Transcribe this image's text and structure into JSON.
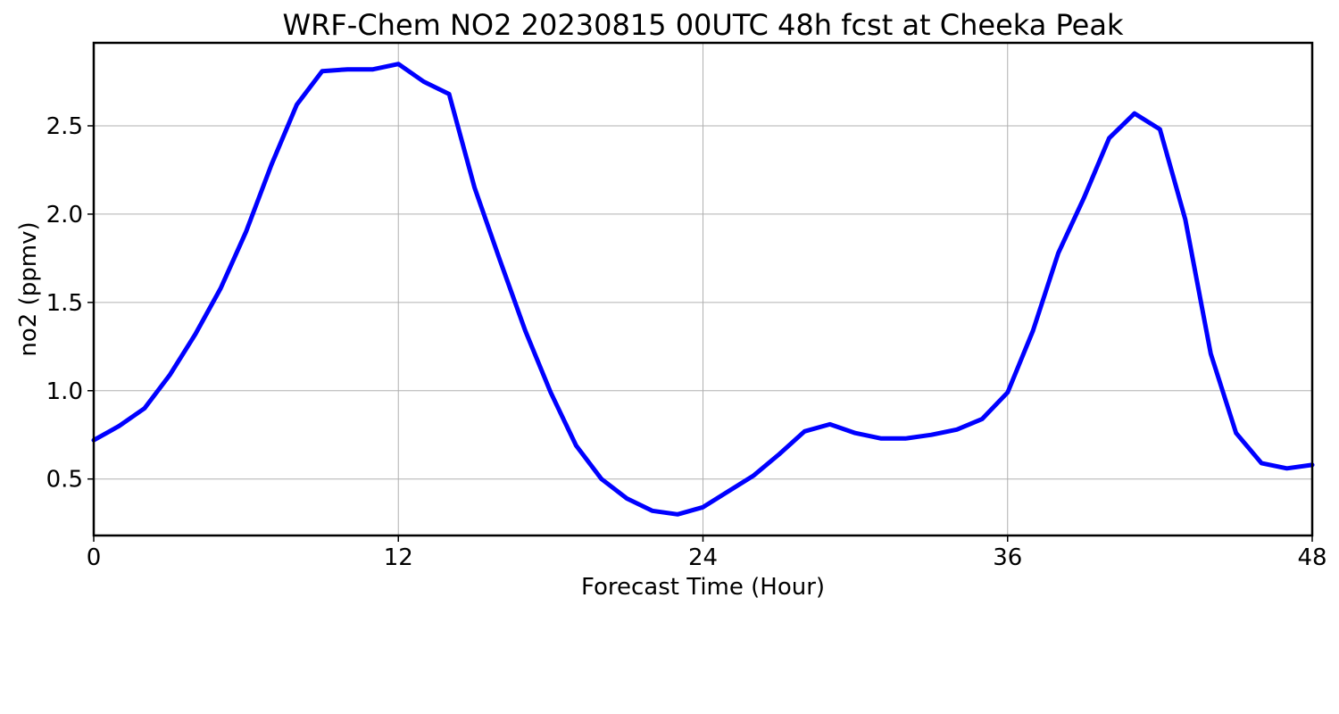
{
  "chart_data": {
    "type": "line",
    "title": "WRF-Chem NO2  20230815 00UTC 48h fcst at Cheeka Peak",
    "xlabel": "Forecast Time (Hour)",
    "ylabel": "no2  (ppmv)",
    "xlim": [
      0,
      48
    ],
    "ylim": [
      0.18,
      2.97
    ],
    "xticks": [
      0,
      12,
      24,
      36,
      48
    ],
    "xtick_labels": [
      "0",
      "12",
      "24",
      "36",
      "48"
    ],
    "yticks": [
      0.5,
      1.0,
      1.5,
      2.0,
      2.5
    ],
    "ytick_labels": [
      "0.5",
      "1.0",
      "1.5",
      "2.0",
      "2.5"
    ],
    "grid": true,
    "legend": false,
    "line_color": "#0000ff",
    "series": [
      {
        "x": [
          0,
          1,
          2,
          3,
          4,
          5,
          6,
          7,
          8,
          9,
          10,
          11,
          12,
          13,
          14,
          15,
          16,
          17,
          18,
          19,
          20,
          21,
          22,
          23,
          24,
          25,
          26,
          27,
          28,
          29,
          30,
          31,
          32,
          33,
          34,
          35,
          36,
          37,
          38,
          39,
          40,
          41,
          42,
          43,
          44,
          45,
          46,
          47,
          48
        ],
        "values": [
          0.72,
          0.8,
          0.9,
          1.09,
          1.32,
          1.58,
          1.9,
          2.28,
          2.62,
          2.81,
          2.82,
          2.82,
          2.85,
          2.75,
          2.68,
          2.15,
          1.74,
          1.34,
          0.99,
          0.69,
          0.5,
          0.39,
          0.32,
          0.3,
          0.34,
          0.43,
          0.52,
          0.64,
          0.77,
          0.81,
          0.76,
          0.73,
          0.73,
          0.75,
          0.78,
          0.84,
          0.99,
          1.34,
          1.78,
          2.09,
          2.43,
          2.57,
          2.48,
          1.97,
          1.21,
          0.76,
          0.59,
          0.56,
          0.58
        ]
      }
    ]
  }
}
